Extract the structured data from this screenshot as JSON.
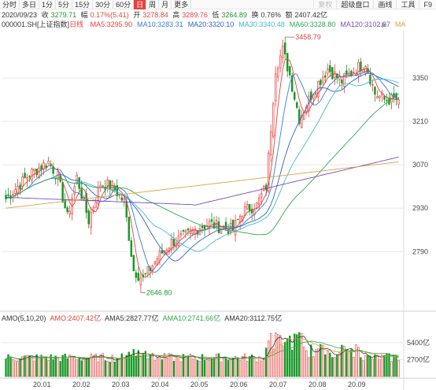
{
  "toolbar": {
    "timeframes": [
      "分时",
      "多日",
      "1分",
      "5分",
      "15分",
      "30分",
      "60分",
      "日",
      "周",
      "月",
      "更多"
    ],
    "active": "日",
    "right_tools": [
      "复权",
      "超级盘口",
      "画线",
      "工具",
      "F9"
    ]
  },
  "quote": {
    "date": "2020/09/23",
    "close_label": "收",
    "close": "3279.71",
    "change_label": "幅",
    "change": "0.17%(5.41)",
    "open_label": "开",
    "open": "3278.84",
    "high_label": "高",
    "high": "3289.76",
    "low_label": "低",
    "low": "3264.89",
    "turnover_label": "换",
    "turnover": "0.76%",
    "amount_label": "额",
    "amount": "2407.42亿"
  },
  "ma_legend": {
    "symbol": "000001.SH",
    "name": "[上证指数]",
    "period": "日线",
    "items": [
      {
        "label": "MA5:3295.90",
        "color": "#e8413b"
      },
      {
        "label": "MA10:3283.31",
        "color": "#3a7bd5"
      },
      {
        "label": "MA20:3320.10",
        "color": "#2f63c9"
      },
      {
        "label": "MA30:3340.48",
        "color": "#42b8d6"
      },
      {
        "label": "MA60:3328.80",
        "color": "#2ea84a"
      },
      {
        "label": "MA120:3102.27",
        "color": "#7b4cc4"
      },
      {
        "label": "MA",
        "color": "#d9a441"
      }
    ],
    "more_arrow": "▶"
  },
  "amo_legend": {
    "items": [
      {
        "label": "AMO(5,10,20)",
        "color": "#333333"
      },
      {
        "label": "AMO:2407.42亿",
        "color": "#e8413b"
      },
      {
        "label": "AMA5:2827.77亿",
        "color": "#333333"
      },
      {
        "label": "AMA10:2741.66亿",
        "color": "#2ea84a"
      },
      {
        "label": "AMA20:3112.75亿",
        "color": "#333333"
      }
    ]
  },
  "annotations": {
    "high": "3458.79",
    "low": "2646.80"
  },
  "colors": {
    "up": "#e8413b",
    "down": "#1a9a2a",
    "grid": "#e8e8e8"
  },
  "chart_data": {
    "type": "candlestick",
    "price_axis": {
      "ticks": [
        "3350",
        "3210",
        "3070",
        "2930",
        "2790"
      ],
      "range": [
        2600,
        3500
      ]
    },
    "volume_axis": {
      "ticks": [
        "5400亿",
        "2700亿"
      ],
      "range": [
        0,
        8500
      ]
    },
    "x_ticks": [
      "20.01",
      "20.02",
      "20.03",
      "20.04",
      "20.05",
      "20.06",
      "20.07",
      "20.08",
      "20.09"
    ],
    "anchors": [
      {
        "i": 0,
        "c": 2960
      },
      {
        "i": 10,
        "c": 3040
      },
      {
        "i": 18,
        "c": 3080
      },
      {
        "i": 22,
        "c": 3030
      },
      {
        "i": 26,
        "c": 2900
      },
      {
        "i": 30,
        "c": 3030
      },
      {
        "i": 35,
        "c": 2890
      },
      {
        "i": 40,
        "c": 3010
      },
      {
        "i": 45,
        "c": 3000
      },
      {
        "i": 50,
        "c": 2950
      },
      {
        "i": 54,
        "c": 2730
      },
      {
        "i": 58,
        "c": 2700
      },
      {
        "i": 64,
        "c": 2770
      },
      {
        "i": 70,
        "c": 2820
      },
      {
        "i": 76,
        "c": 2840
      },
      {
        "i": 82,
        "c": 2870
      },
      {
        "i": 86,
        "c": 2880
      },
      {
        "i": 90,
        "c": 2870
      },
      {
        "i": 96,
        "c": 2860
      },
      {
        "i": 100,
        "c": 2920
      },
      {
        "i": 106,
        "c": 2940
      },
      {
        "i": 110,
        "c": 3000
      },
      {
        "i": 114,
        "c": 3380
      },
      {
        "i": 117,
        "c": 3440
      },
      {
        "i": 120,
        "c": 3360
      },
      {
        "i": 124,
        "c": 3220
      },
      {
        "i": 130,
        "c": 3310
      },
      {
        "i": 136,
        "c": 3380
      },
      {
        "i": 142,
        "c": 3340
      },
      {
        "i": 148,
        "c": 3380
      },
      {
        "i": 152,
        "c": 3400
      },
      {
        "i": 156,
        "c": 3300
      },
      {
        "i": 160,
        "c": 3280
      },
      {
        "i": 166,
        "c": 3280
      }
    ]
  }
}
